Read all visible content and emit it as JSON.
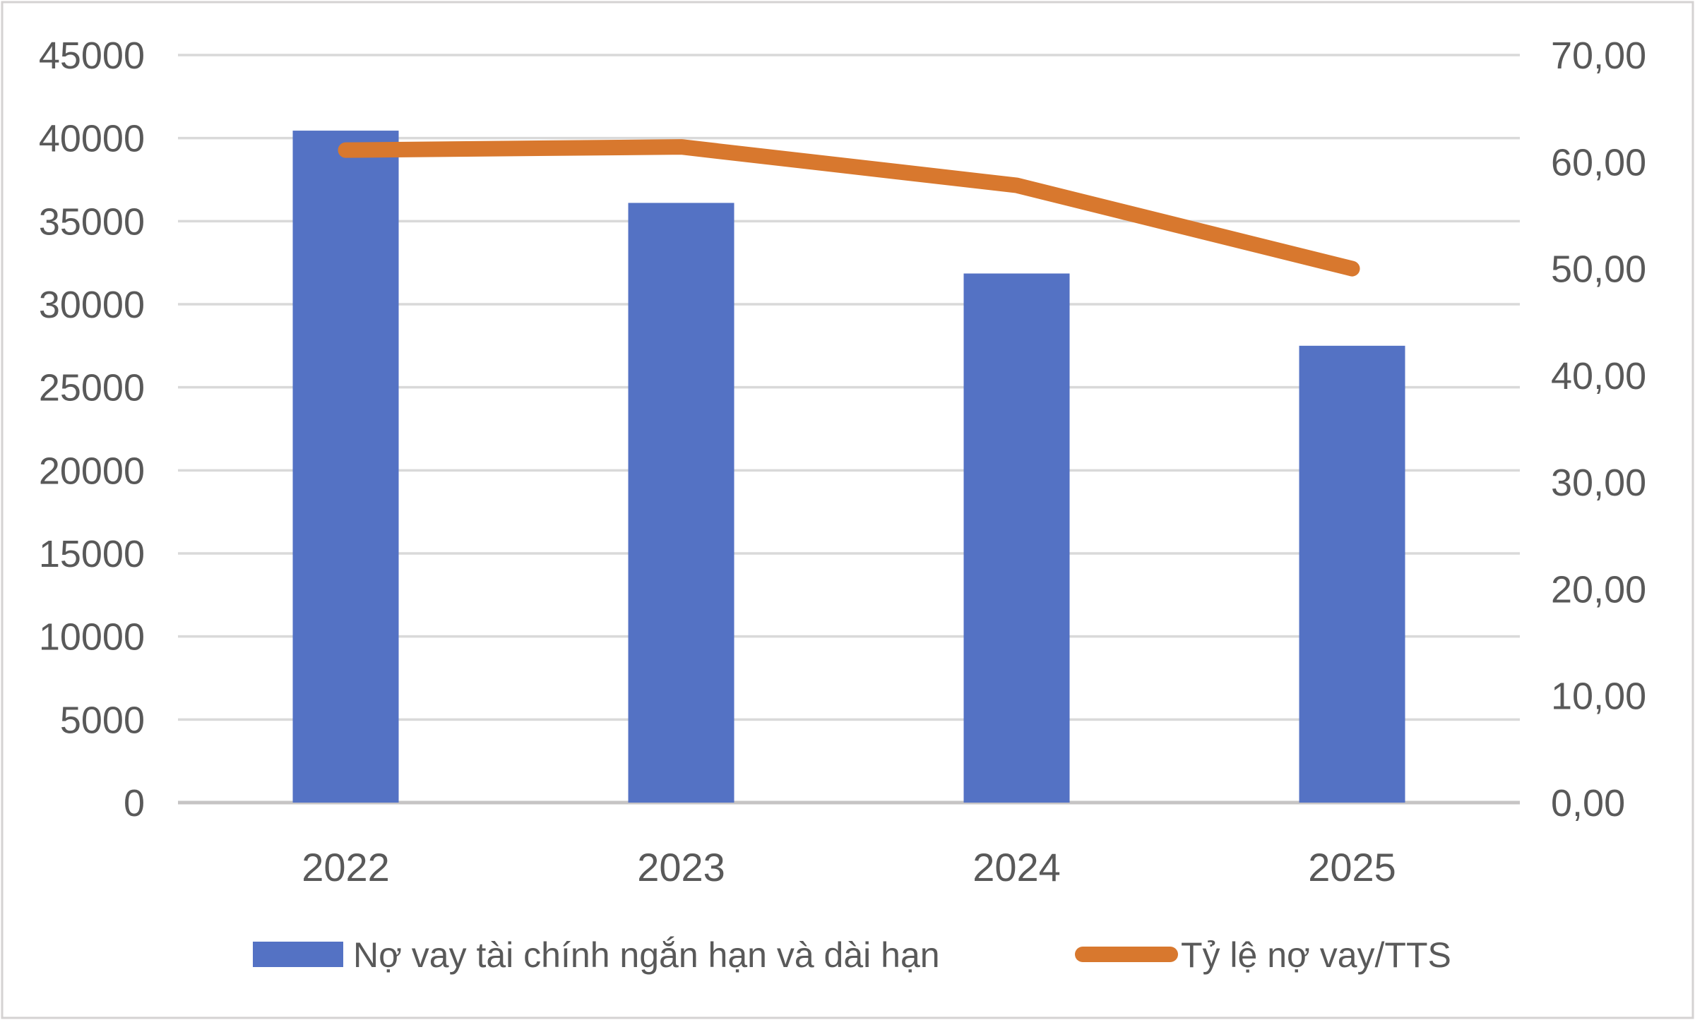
{
  "chart_data": {
    "type": "combo-bar-line",
    "title": "",
    "categories": [
      "2022",
      "2023",
      "2024",
      "2025"
    ],
    "series": [
      {
        "name": "Nợ vay tài chính ngắn hạn và dài hạn",
        "type": "bar",
        "axis": "left",
        "values": [
          40450,
          36100,
          31850,
          27500
        ],
        "color": "#5472C4"
      },
      {
        "name": "Tỷ lệ nợ vay/TTS",
        "type": "line",
        "axis": "right",
        "values": [
          61.1,
          61.4,
          57.8,
          50.0
        ],
        "color": "#D8782E"
      }
    ],
    "left_axis": {
      "min": 0,
      "max": 45000,
      "step": 5000,
      "tick_labels": [
        "0",
        "5000",
        "10000",
        "15000",
        "20000",
        "25000",
        "30000",
        "35000",
        "40000",
        "45000"
      ]
    },
    "right_axis": {
      "min": 0,
      "max": 70,
      "step": 10,
      "tick_labels": [
        "0,00",
        "10,00",
        "20,00",
        "30,00",
        "40,00",
        "50,00",
        "60,00",
        "70,00"
      ]
    },
    "grid": true,
    "legend_position": "bottom",
    "colors": {
      "bar": "#5472C4",
      "line": "#D8782E",
      "gridline": "#D9D9D9",
      "axis_line": "#C6C4C4",
      "text": "#595959",
      "border": "#D4D2D2",
      "background": "#FFFFFF"
    }
  }
}
